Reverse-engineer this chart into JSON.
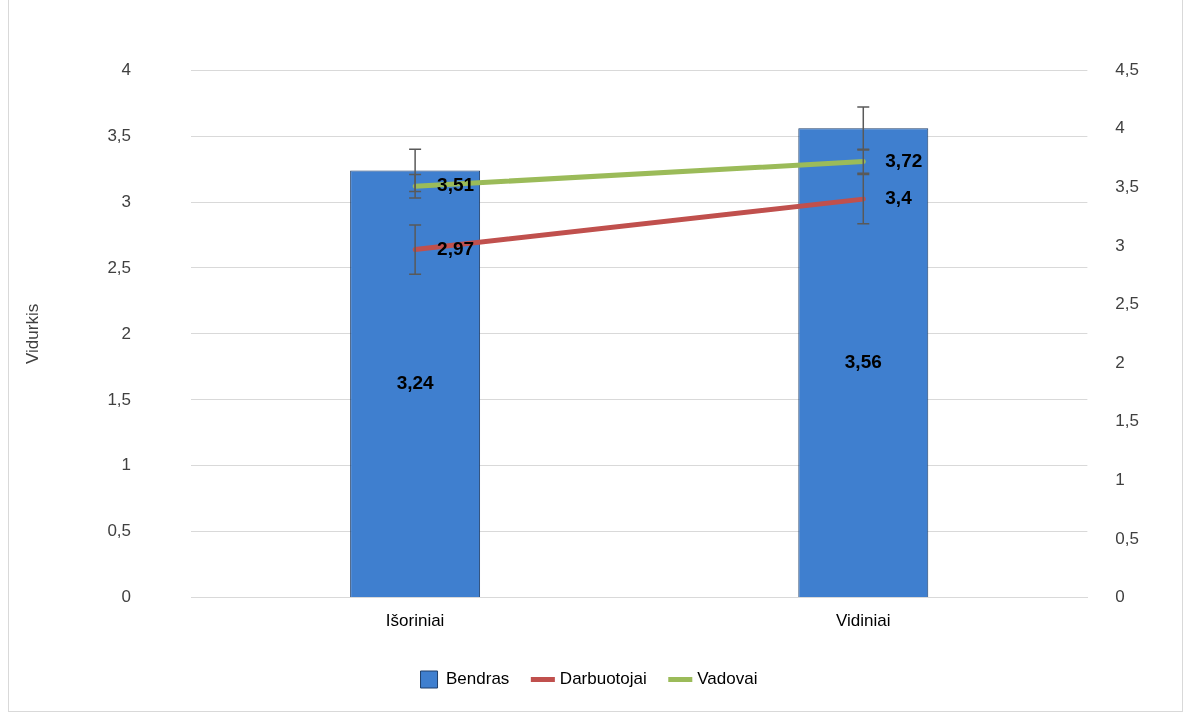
{
  "chart_data": {
    "type": "bar",
    "ylabel": "Vidurkis",
    "categories": [
      "Išoriniai",
      "Vidiniai"
    ],
    "series": [
      {
        "name": "Bendras",
        "color": "#3f7fcf",
        "values": [
          3.24,
          3.56
        ],
        "errors": [
          0.16,
          0.16
        ],
        "value_labels": [
          "3,24",
          "3,56"
        ]
      },
      {
        "name": "Darbuotojai",
        "type": "line",
        "axis": "y2",
        "color": "#c0504d",
        "values": [
          2.97,
          3.4
        ],
        "errors": [
          0.21,
          0.21
        ],
        "value_labels": [
          "2,97",
          "3,4"
        ]
      },
      {
        "name": "Vadovai",
        "type": "line",
        "axis": "y2",
        "color": "#9bbb59",
        "values": [
          3.51,
          3.72
        ],
        "errors": [
          0.1,
          0.1
        ],
        "value_labels": [
          "3,51",
          "3,72"
        ]
      }
    ],
    "ylim": [
      0,
      4
    ],
    "yticks": [
      0,
      {
        "value": 0.5,
        "label": "0,5"
      },
      1,
      {
        "value": 1.5,
        "label": "1,5"
      },
      2,
      {
        "value": 2.5,
        "label": "2,5"
      },
      3,
      {
        "value": 3.5,
        "label": "3,5"
      },
      4
    ],
    "y2lim": [
      0,
      4.5
    ],
    "y2ticks": [
      0,
      {
        "value": 0.5,
        "label": "0,5"
      },
      1,
      {
        "value": 1.5,
        "label": "1,5"
      },
      2,
      {
        "value": 2.5,
        "label": "2,5"
      },
      3,
      {
        "value": 3.5,
        "label": "3,5"
      },
      4,
      {
        "value": 4.5,
        "label": "4,5"
      }
    ],
    "grid": "y",
    "legend": "bottom"
  }
}
